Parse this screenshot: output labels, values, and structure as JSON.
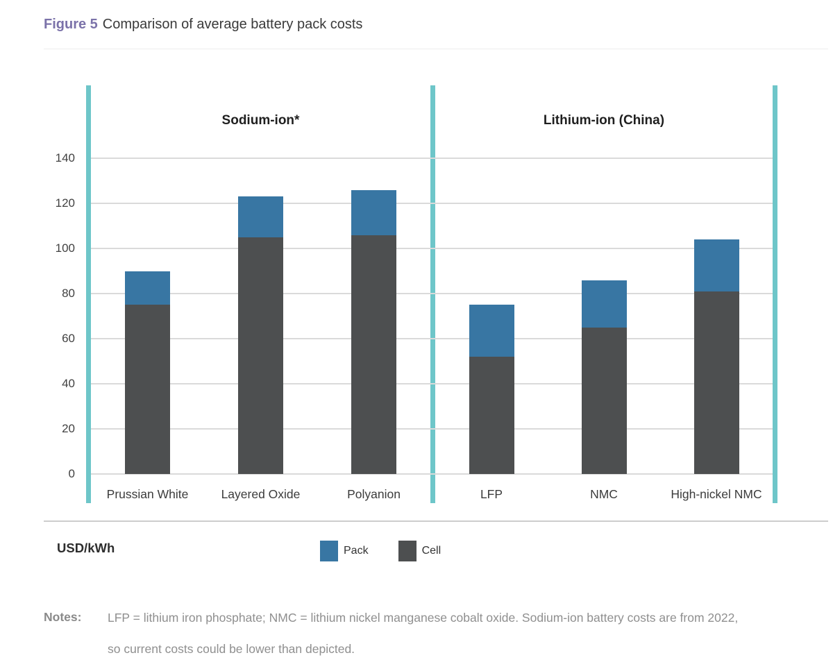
{
  "figure": {
    "label": "Figure 5",
    "title": "Comparison of average battery pack costs"
  },
  "chart_data": {
    "type": "bar",
    "stacked": true,
    "title": "Figure 5 Comparison of average battery pack costs",
    "unit_label": "USD/kWh",
    "ylabel": "USD/kWh",
    "ylim": [
      0,
      140
    ],
    "yticks": [
      0,
      20,
      40,
      60,
      80,
      100,
      120,
      140
    ],
    "grid": true,
    "legend_position": "bottom",
    "groups": [
      {
        "label": "Sodium-ion*",
        "categories": [
          "Prussian White",
          "Layered Oxide",
          "Polyanion"
        ]
      },
      {
        "label": "Lithium-ion (China)",
        "categories": [
          "LFP",
          "NMC",
          "High-nickel NMC"
        ]
      }
    ],
    "categories": [
      "Prussian White",
      "Layered Oxide",
      "Polyanion",
      "LFP",
      "NMC",
      "High-nickel NMC"
    ],
    "series": [
      {
        "name": "Cell",
        "color": "#4d4f50",
        "values": [
          75,
          105,
          106,
          52,
          65,
          81
        ]
      },
      {
        "name": "Pack",
        "color": "#3876a3",
        "values": [
          15,
          18,
          20,
          23,
          21,
          23
        ]
      }
    ],
    "stack_totals": [
      90,
      123,
      126,
      75,
      86,
      104
    ]
  },
  "legend": {
    "items": [
      {
        "label": "Pack",
        "color": "#3876a3"
      },
      {
        "label": "Cell",
        "color": "#4d4f50"
      }
    ]
  },
  "notes": {
    "label": "Notes:",
    "lines": [
      "LFP = lithium iron phosphate; NMC = lithium nickel manganese cobalt oxide. Sodium-ion battery costs are from 2022,",
      "so current costs could be lower than depicted."
    ]
  },
  "colors": {
    "accent_teal": "#6ec6c9",
    "pack_blue": "#3876a3",
    "cell_gray": "#4d4f50",
    "figure_label_purple": "#7b72a9",
    "gridline": "#dadada",
    "notes_gray": "#8f8f8f"
  }
}
